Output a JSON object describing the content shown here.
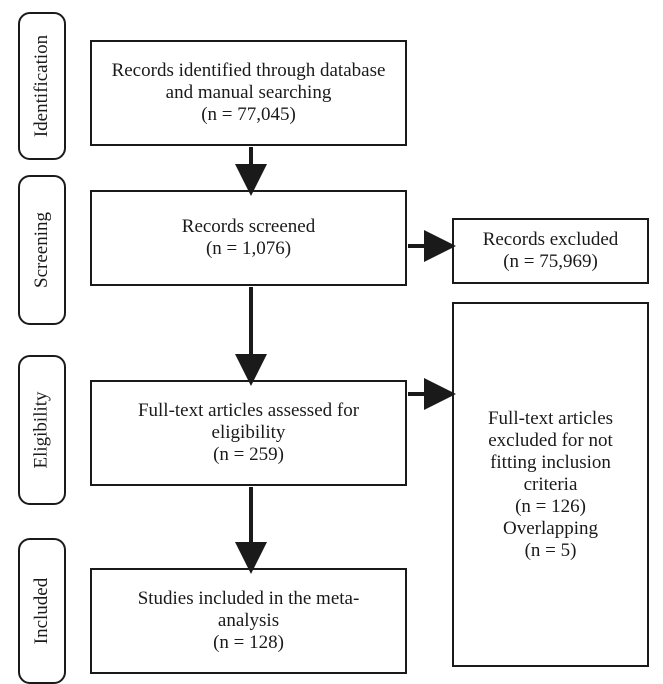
{
  "phases": {
    "identification": "Identification",
    "screening": "Screening",
    "eligibility": "Eligibility",
    "included": "Included"
  },
  "boxes": {
    "identified": {
      "lines": [
        "Records identified through database",
        "and manual searching",
        "(n = 77,045)"
      ]
    },
    "screened": {
      "lines": [
        "Records screened",
        "(n = 1,076)"
      ]
    },
    "excluded": {
      "lines": [
        "Records excluded",
        "(n = 75,969)"
      ]
    },
    "assessed": {
      "lines": [
        "Full-text articles assessed for",
        "eligibility",
        "(n = 259)"
      ]
    },
    "fulltext_excluded": {
      "lines": [
        "Full-text articles",
        "excluded for not",
        "fitting inclusion",
        "criteria",
        "(n = 126)",
        "Overlapping",
        "(n = 5)"
      ]
    },
    "included": {
      "lines": [
        "Studies included in the meta-",
        "analysis",
        "(n = 128)"
      ]
    }
  },
  "colors": {
    "stroke": "#1a1a1a",
    "background": "#ffffff"
  }
}
